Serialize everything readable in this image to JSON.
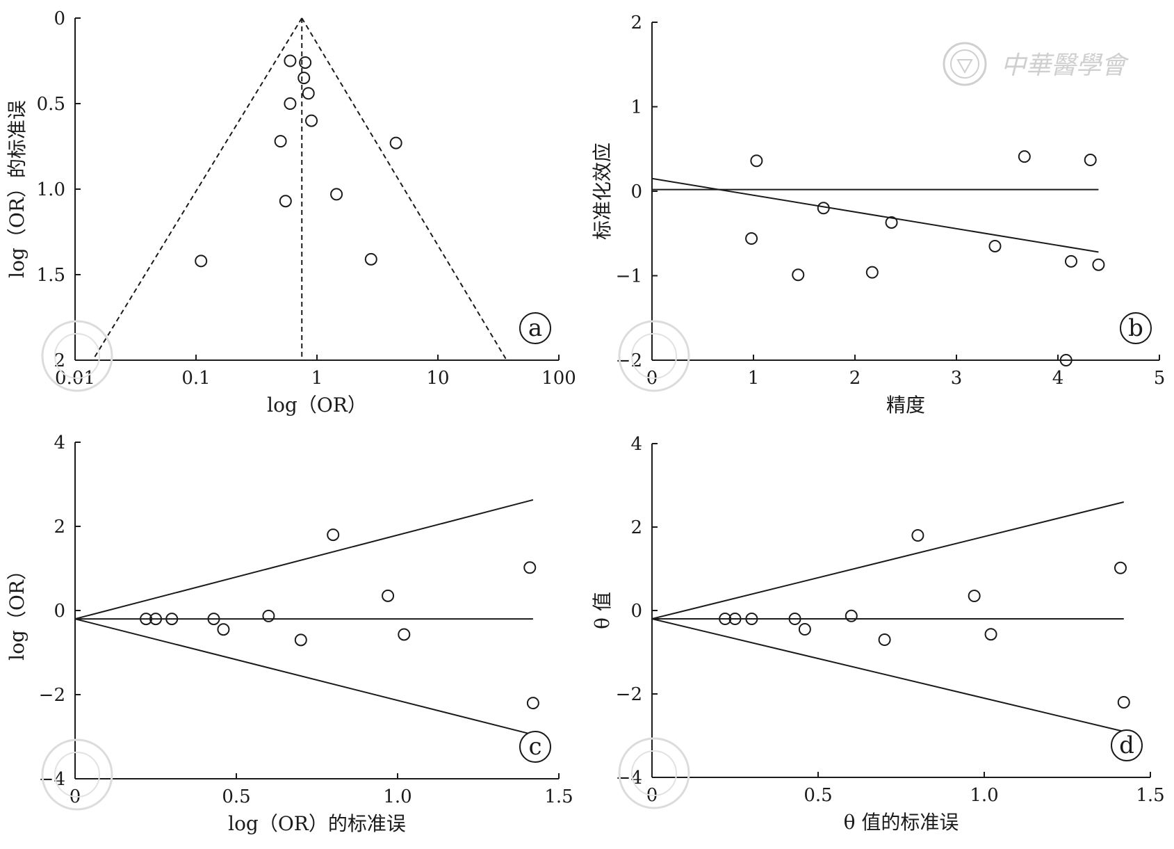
{
  "watermark": {
    "org_text": "中華醫學會",
    "seal_icon": "cma-seal-icon",
    "color": "#cfcfcf"
  },
  "chart_data": [
    {
      "id": "a",
      "type": "scatter",
      "badge": "a",
      "subtype": "funnel",
      "xlabel": "log（OR）",
      "ylabel": "log（OR）的标准误",
      "x_scale": "log",
      "xlim": [
        0.01,
        100
      ],
      "ylim": [
        2,
        0
      ],
      "y_inverted": true,
      "xticks": [
        0.01,
        0.1,
        1,
        10,
        100
      ],
      "xtick_labels": [
        "0.01",
        "0.1",
        "1",
        "10",
        "100"
      ],
      "yticks": [
        0,
        0.5,
        1.0,
        1.5,
        2
      ],
      "ytick_labels": [
        "0",
        "0.5",
        "1.0",
        "1.5",
        "2"
      ],
      "center_line_x": 0.75,
      "funnel_lines": [
        {
          "x1": 0.75,
          "y1": 0,
          "x2": 0.014,
          "y2": 2
        },
        {
          "x1": 0.75,
          "y1": 0,
          "x2": 37,
          "y2": 2
        }
      ],
      "points": [
        {
          "x": 0.6,
          "y": 0.25
        },
        {
          "x": 0.8,
          "y": 0.26
        },
        {
          "x": 0.78,
          "y": 0.35
        },
        {
          "x": 0.85,
          "y": 0.44
        },
        {
          "x": 0.6,
          "y": 0.5
        },
        {
          "x": 0.9,
          "y": 0.6
        },
        {
          "x": 0.5,
          "y": 0.72
        },
        {
          "x": 4.5,
          "y": 0.73
        },
        {
          "x": 1.45,
          "y": 1.03
        },
        {
          "x": 0.55,
          "y": 1.07
        },
        {
          "x": 0.11,
          "y": 1.42
        },
        {
          "x": 2.8,
          "y": 1.41
        }
      ]
    },
    {
      "id": "b",
      "type": "scatter",
      "badge": "b",
      "subtype": "galbraith",
      "xlabel": "精度",
      "ylabel": "标准化效应",
      "xlim": [
        0,
        5
      ],
      "ylim": [
        -2,
        2
      ],
      "xticks": [
        0,
        1,
        2,
        3,
        4,
        5
      ],
      "xtick_labels": [
        "0",
        "1",
        "2",
        "3",
        "4",
        "5"
      ],
      "yticks": [
        -2,
        -1,
        0,
        1,
        2
      ],
      "ytick_labels": [
        "−2",
        "−1",
        "0",
        "1",
        "2"
      ],
      "lines": [
        {
          "x1": 0,
          "y1": 0.02,
          "x2": 4.4,
          "y2": 0.02
        },
        {
          "x1": 0,
          "y1": 0.15,
          "x2": 4.4,
          "y2": -0.72
        }
      ],
      "points": [
        {
          "x": 1.03,
          "y": 0.36
        },
        {
          "x": 0.98,
          "y": -0.56
        },
        {
          "x": 1.44,
          "y": -0.99
        },
        {
          "x": 1.69,
          "y": -0.2
        },
        {
          "x": 2.17,
          "y": -0.96
        },
        {
          "x": 2.36,
          "y": -0.37
        },
        {
          "x": 3.38,
          "y": -0.65
        },
        {
          "x": 3.67,
          "y": 0.41
        },
        {
          "x": 4.13,
          "y": -0.83
        },
        {
          "x": 4.08,
          "y": -2.0
        },
        {
          "x": 4.32,
          "y": 0.37
        },
        {
          "x": 4.4,
          "y": -0.87
        }
      ]
    },
    {
      "id": "c",
      "type": "scatter",
      "badge": "c",
      "subtype": "funnel-bounds",
      "xlabel": "log（OR）的标准误",
      "ylabel": "log（OR）",
      "xlim": [
        0,
        1.5
      ],
      "ylim": [
        -4,
        4
      ],
      "xticks": [
        0,
        0.5,
        1.0,
        1.5
      ],
      "xtick_labels": [
        "0",
        "0.5",
        "1.0",
        "1.5"
      ],
      "yticks": [
        -4,
        -2,
        0,
        2,
        4
      ],
      "ytick_labels": [
        "−4",
        "−2",
        "0",
        "2",
        "4"
      ],
      "lines": [
        {
          "x1": 0,
          "y1": -0.2,
          "x2": 1.42,
          "y2": -0.2
        },
        {
          "x1": 0,
          "y1": -0.2,
          "x2": 1.42,
          "y2": 2.63
        },
        {
          "x1": 0,
          "y1": -0.2,
          "x2": 1.42,
          "y2": -2.95
        }
      ],
      "points": [
        {
          "x": 0.22,
          "y": -0.2
        },
        {
          "x": 0.25,
          "y": -0.2
        },
        {
          "x": 0.3,
          "y": -0.2
        },
        {
          "x": 0.43,
          "y": -0.2
        },
        {
          "x": 0.46,
          "y": -0.45
        },
        {
          "x": 0.6,
          "y": -0.13
        },
        {
          "x": 0.7,
          "y": -0.7
        },
        {
          "x": 0.8,
          "y": 1.8
        },
        {
          "x": 0.97,
          "y": 0.35
        },
        {
          "x": 1.02,
          "y": -0.57
        },
        {
          "x": 1.41,
          "y": 1.02
        },
        {
          "x": 1.42,
          "y": -2.2
        }
      ]
    },
    {
      "id": "d",
      "type": "scatter",
      "badge": "d",
      "subtype": "funnel-bounds",
      "xlabel": "θ 值的标准误",
      "ylabel": "θ 值",
      "xlim": [
        0,
        1.5
      ],
      "ylim": [
        -4,
        4
      ],
      "xticks": [
        0,
        0.5,
        1.0,
        1.5
      ],
      "xtick_labels": [
        "0",
        "0.5",
        "1.0",
        "1.5"
      ],
      "yticks": [
        -4,
        -2,
        0,
        2,
        4
      ],
      "ytick_labels": [
        "−4",
        "−2",
        "0",
        "2",
        "4"
      ],
      "lines": [
        {
          "x1": 0,
          "y1": -0.2,
          "x2": 1.42,
          "y2": -0.2
        },
        {
          "x1": 0,
          "y1": -0.2,
          "x2": 1.42,
          "y2": 2.6
        },
        {
          "x1": 0,
          "y1": -0.2,
          "x2": 1.42,
          "y2": -2.9
        }
      ],
      "points": [
        {
          "x": 0.22,
          "y": -0.2
        },
        {
          "x": 0.25,
          "y": -0.2
        },
        {
          "x": 0.3,
          "y": -0.2
        },
        {
          "x": 0.43,
          "y": -0.2
        },
        {
          "x": 0.46,
          "y": -0.45
        },
        {
          "x": 0.6,
          "y": -0.13
        },
        {
          "x": 0.7,
          "y": -0.7
        },
        {
          "x": 0.8,
          "y": 1.8
        },
        {
          "x": 0.97,
          "y": 0.35
        },
        {
          "x": 1.02,
          "y": -0.57
        },
        {
          "x": 1.41,
          "y": 1.02
        },
        {
          "x": 1.42,
          "y": -2.2
        }
      ]
    }
  ]
}
